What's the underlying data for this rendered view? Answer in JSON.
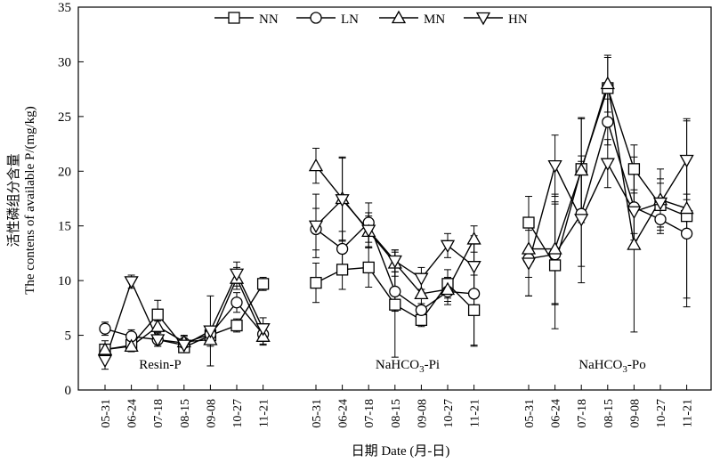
{
  "chart_data": {
    "type": "line",
    "title": "",
    "ylabel_cn": "活性磷组分含量",
    "ylabel_en": "The contens of available P/(mg/kg)",
    "xlabel": "日期 Date (月-日)",
    "ylim": [
      0,
      35
    ],
    "yticks": [
      0,
      5,
      10,
      15,
      20,
      25,
      30,
      35
    ],
    "legend_position": "top-center",
    "groups": [
      {
        "label": "Resin-P",
        "label_main": "Resin-P",
        "label_sub": "",
        "label_tail": ""
      },
      {
        "label": "NaHCO3-Pi",
        "label_main": "NaHCO",
        "label_sub": "3",
        "label_tail": "-Pi"
      },
      {
        "label": "NaHCO3-Po",
        "label_main": "NaHCO",
        "label_sub": "3",
        "label_tail": "-Po"
      }
    ],
    "categories": [
      "05-31",
      "06-24",
      "07-18",
      "08-15",
      "09-08",
      "10-27",
      "11-21"
    ],
    "series": [
      {
        "name": "NN",
        "marker": "square",
        "values": [
          [
            3.7,
            4.1,
            6.9,
            3.9,
            5.0,
            5.9,
            9.7
          ],
          [
            9.8,
            11.0,
            11.2,
            7.8,
            6.4,
            9.7,
            7.3
          ],
          [
            15.3,
            11.4,
            20.2,
            27.6,
            20.2,
            16.9,
            15.9
          ]
        ],
        "errors": [
          [
            0.4,
            0.4,
            1.3,
            0.4,
            0.4,
            0.6,
            0.6
          ],
          [
            1.8,
            1.8,
            1.8,
            4.8,
            0.6,
            1.3,
            3.2
          ],
          [
            2.4,
            5.8,
            4.6,
            2.8,
            2.2,
            2.0,
            2.0
          ]
        ]
      },
      {
        "name": "LN",
        "marker": "circle",
        "values": [
          [
            5.6,
            4.9,
            4.6,
            4.3,
            5.1,
            8.0,
            5.1
          ],
          [
            14.7,
            12.9,
            15.3,
            9.0,
            7.3,
            9.0,
            8.8
          ],
          [
            12.0,
            12.4,
            16.1,
            24.5,
            16.7,
            15.6,
            14.3
          ]
        ],
        "errors": [
          [
            0.6,
            0.6,
            0.6,
            0.6,
            0.6,
            0.9,
            0.9
          ],
          [
            1.9,
            1.6,
            1.8,
            1.8,
            0.6,
            1.2,
            4.8
          ],
          [
            3.4,
            4.6,
            4.8,
            2.1,
            3.0,
            1.3,
            6.7
          ]
        ]
      },
      {
        "name": "MN",
        "marker": "triangle-up",
        "values": [
          [
            3.7,
            4.0,
            5.8,
            4.4,
            4.6,
            10.2,
            4.9
          ],
          [
            20.5,
            17.5,
            14.5,
            11.6,
            8.8,
            9.2,
            13.8
          ],
          [
            12.9,
            12.9,
            20.1,
            28.0,
            13.3,
            17.4,
            16.6
          ]
        ],
        "errors": [
          [
            0.8,
            0.5,
            0.5,
            0.6,
            0.6,
            1.0,
            0.8
          ],
          [
            1.6,
            3.8,
            1.4,
            1.2,
            1.6,
            1.1,
            1.2
          ],
          [
            2.6,
            5.0,
            4.8,
            2.6,
            8.0,
            2.8,
            8.2
          ]
        ]
      },
      {
        "name": "HN",
        "marker": "triangle-down",
        "values": [
          [
            2.7,
            9.9,
            4.6,
            4.1,
            5.4,
            10.6,
            5.6
          ],
          [
            15.0,
            17.4,
            14.6,
            11.8,
            10.2,
            13.2,
            11.3
          ],
          [
            11.6,
            20.5,
            15.6,
            20.7,
            16.3,
            17.1,
            21.0
          ]
        ],
        "errors": [
          [
            0.8,
            0.6,
            0.6,
            0.6,
            3.2,
            1.1,
            1.0
          ],
          [
            2.9,
            3.8,
            1.6,
            1.0,
            1.0,
            1.1,
            2.8
          ],
          [
            3.0,
            2.8,
            5.8,
            2.2,
            2.0,
            2.2,
            3.6
          ]
        ]
      }
    ]
  }
}
